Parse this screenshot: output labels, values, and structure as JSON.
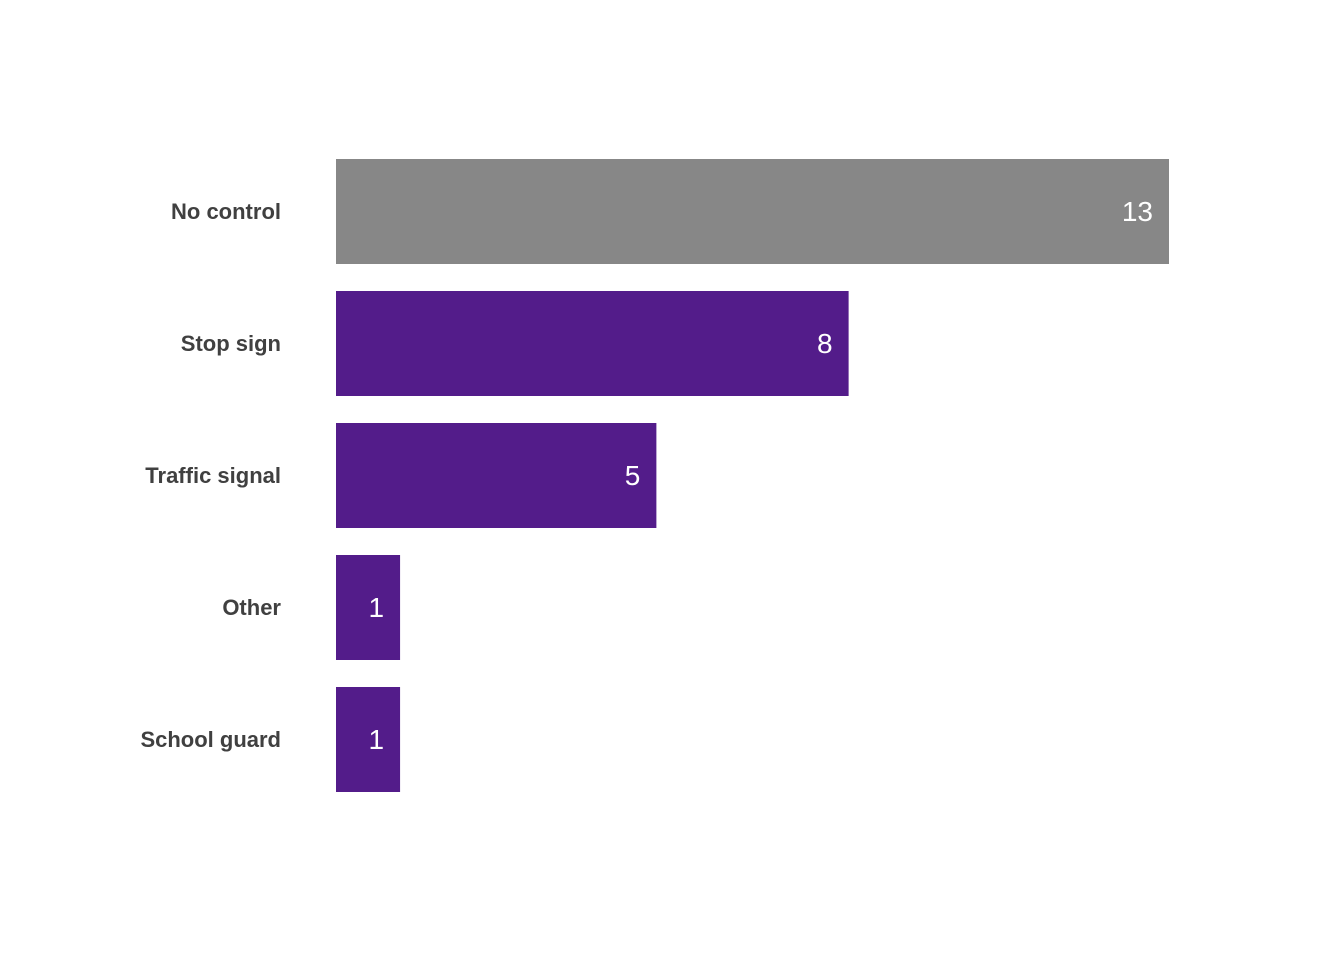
{
  "chart_data": {
    "type": "bar",
    "orientation": "horizontal",
    "categories": [
      "No control",
      "Stop sign",
      "Traffic signal",
      "Other",
      "School guard"
    ],
    "values": [
      13,
      8,
      5,
      1,
      1
    ],
    "bar_colors": [
      "#878787",
      "#531C8A",
      "#531C8A",
      "#531C8A",
      "#531C8A"
    ],
    "label_color": "#404040",
    "value_label_color": "#FFFFFF",
    "title": "",
    "xlabel": "",
    "ylabel": "",
    "xlim": [
      0,
      13
    ],
    "grid": false,
    "legend": "none",
    "data_labels": "inside-end"
  }
}
